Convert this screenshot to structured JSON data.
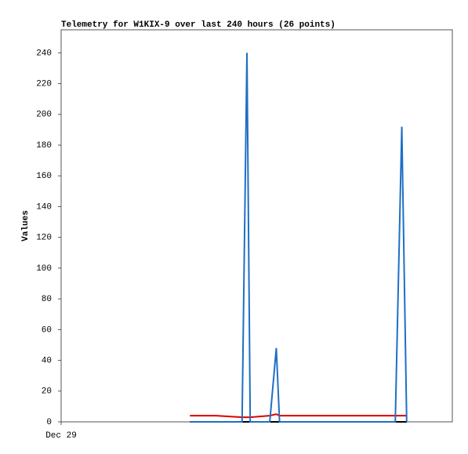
{
  "chart_data": {
    "type": "line",
    "title": "Telemetry for W1KIX-9 over last 240 hours (26 points)",
    "y_label": "Values",
    "x": [
      79,
      95,
      111,
      114,
      116,
      128,
      132,
      134,
      150,
      170,
      205,
      209,
      212
    ],
    "series": [
      {
        "color": "#000000",
        "values": [
          0,
          0,
          0,
          0,
          0,
          0,
          0,
          0,
          0,
          0,
          0,
          0,
          0
        ]
      },
      {
        "color": "#e00000",
        "values": [
          4,
          4,
          3,
          3,
          3,
          4,
          5,
          4,
          4,
          4,
          4,
          4,
          4
        ]
      },
      {
        "color": "#1f6fc5",
        "values": [
          0,
          0,
          0,
          240,
          0,
          0,
          48,
          0,
          0,
          0,
          0,
          192,
          0
        ]
      }
    ],
    "xlim": [
      0,
      240
    ],
    "xticks": [
      {
        "value": 0,
        "label": "Dec 29"
      }
    ],
    "ylim": [
      0,
      255
    ],
    "yticks": [
      0,
      20,
      40,
      60,
      80,
      100,
      120,
      140,
      160,
      180,
      200,
      220,
      240
    ]
  }
}
